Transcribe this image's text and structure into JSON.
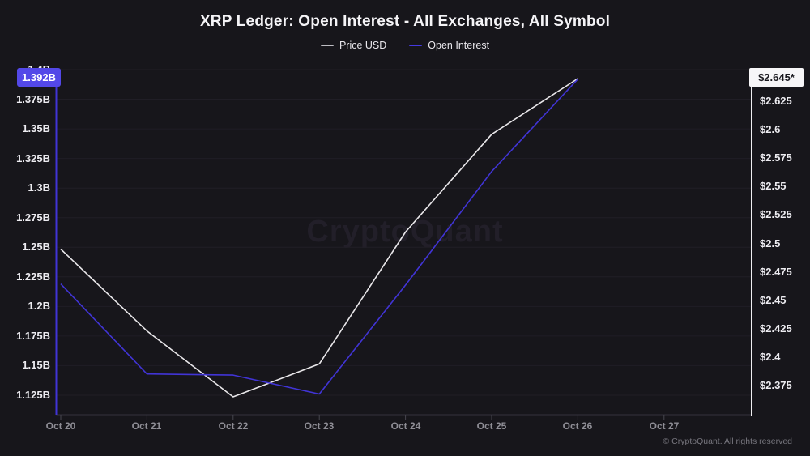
{
  "header": {
    "title": "XRP Ledger: Open Interest - All Exchanges, All Symbol"
  },
  "legend": {
    "items": [
      {
        "label": "Price USD",
        "dash_color": "#bdbcc2"
      },
      {
        "label": "Open Interest",
        "dash_color": "#4539e0"
      }
    ]
  },
  "axis_badges": {
    "open_interest_value": "1.392B",
    "price_value": "$2.645*"
  },
  "watermark_text": "CryptoQuant",
  "footer_copyright": "© CryptoQuant. All rights reserved",
  "chart_data": {
    "type": "line",
    "title": "XRP Ledger: Open Interest - All Exchanges, All Symbol",
    "legend_position": "top",
    "grid": true,
    "x_labels": [
      "Oct 20",
      "Oct 21",
      "Oct 22",
      "Oct 23",
      "Oct 24",
      "Oct 25",
      "Oct 26",
      "Oct 27"
    ],
    "series": [
      {
        "name": "Price USD",
        "axis": "right",
        "color": "#e9e7ea",
        "unit": "USD",
        "values": [
          2.495,
          2.423,
          2.365,
          2.394,
          2.51,
          2.596,
          2.645,
          null
        ]
      },
      {
        "name": "Open Interest",
        "axis": "left",
        "color": "#4134d6",
        "unit": "B",
        "values": [
          1.219,
          1.143,
          1.142,
          1.126,
          1.218,
          1.314,
          1.392,
          null
        ]
      }
    ],
    "left_axis": {
      "label": "Open Interest",
      "range": [
        1.1,
        1.4
      ],
      "ticks": [
        {
          "label": "1.4B",
          "value": 1.4
        },
        {
          "label": "1.375B",
          "value": 1.375
        },
        {
          "label": "1.35B",
          "value": 1.35
        },
        {
          "label": "1.325B",
          "value": 1.325
        },
        {
          "label": "1.3B",
          "value": 1.3
        },
        {
          "label": "1.275B",
          "value": 1.275
        },
        {
          "label": "1.25B",
          "value": 1.25
        },
        {
          "label": "1.225B",
          "value": 1.225
        },
        {
          "label": "1.2B",
          "value": 1.2
        },
        {
          "label": "1.175B",
          "value": 1.175
        },
        {
          "label": "1.15B",
          "value": 1.15
        },
        {
          "label": "1.125B",
          "value": 1.125
        }
      ]
    },
    "right_axis": {
      "label": "Price USD",
      "range": [
        2.36,
        2.65
      ],
      "ticks": [
        {
          "label": "$2.625",
          "value": 2.625
        },
        {
          "label": "$2.6",
          "value": 2.6
        },
        {
          "label": "$2.575",
          "value": 2.575
        },
        {
          "label": "$2.55",
          "value": 2.55
        },
        {
          "label": "$2.525",
          "value": 2.525
        },
        {
          "label": "$2.5",
          "value": 2.5
        },
        {
          "label": "$2.475",
          "value": 2.475
        },
        {
          "label": "$2.45",
          "value": 2.45
        },
        {
          "label": "$2.425",
          "value": 2.425
        },
        {
          "label": "$2.4",
          "value": 2.4
        },
        {
          "label": "$2.375",
          "value": 2.375
        }
      ]
    },
    "latest": {
      "open_interest": "1.392B",
      "price_usd": "$2.645*"
    }
  }
}
